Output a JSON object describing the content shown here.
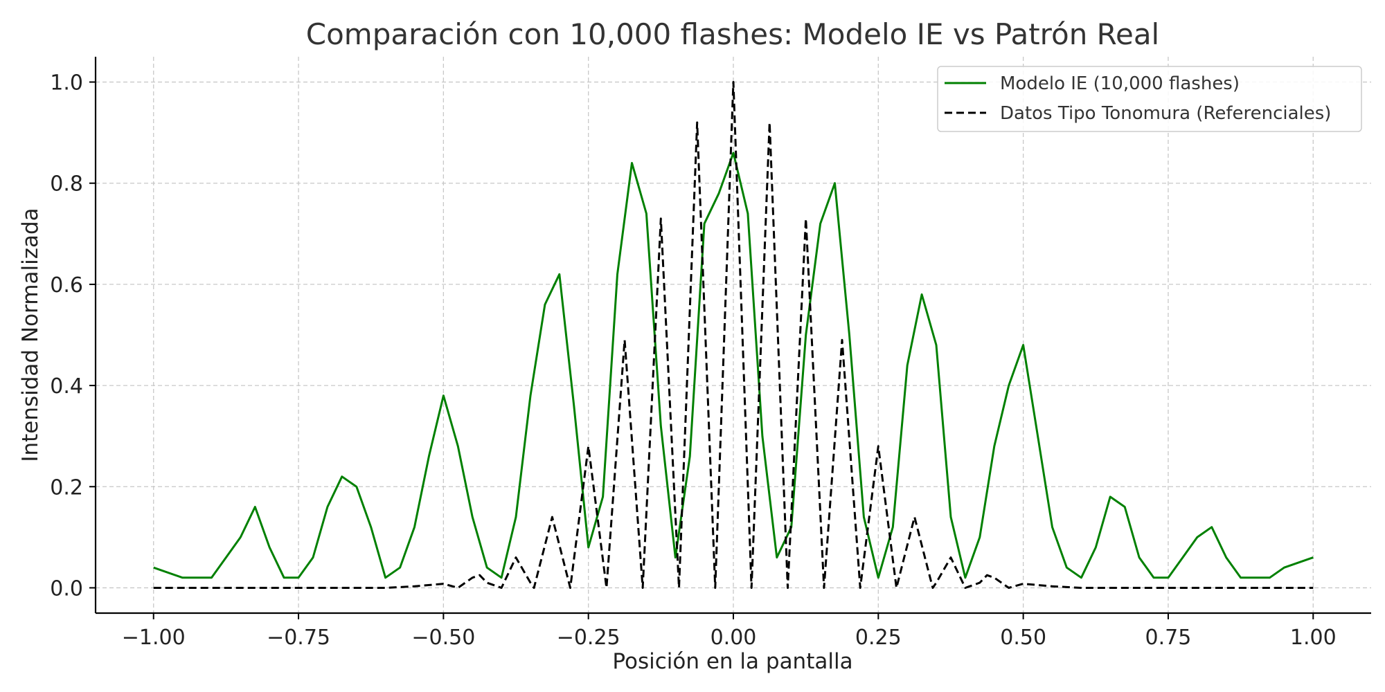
{
  "chart_data": {
    "type": "line",
    "title": "Comparación con 10,000 flashes: Modelo IE vs Patrón Real",
    "xlabel": "Posición en la pantalla",
    "ylabel": "Intensidad Normalizada",
    "xlim": [
      -1.1,
      1.1
    ],
    "ylim": [
      -0.05,
      1.05
    ],
    "xticks": [
      -1.0,
      -0.75,
      -0.5,
      -0.25,
      0.0,
      0.25,
      0.5,
      0.75,
      1.0
    ],
    "xtick_labels": [
      "−1.00",
      "−0.75",
      "−0.50",
      "−0.25",
      "0.00",
      "0.25",
      "0.50",
      "0.75",
      "1.00"
    ],
    "yticks": [
      0.0,
      0.2,
      0.4,
      0.6,
      0.8,
      1.0
    ],
    "ytick_labels": [
      "0.0",
      "0.2",
      "0.4",
      "0.6",
      "0.8",
      "1.0"
    ],
    "grid": true,
    "legend_position": "top-right",
    "series": [
      {
        "name": "Modelo IE (10,000 flashes)",
        "color": "#008000",
        "style": "solid",
        "x": [
          -1.0,
          -0.95,
          -0.9,
          -0.875,
          -0.85,
          -0.825,
          -0.8,
          -0.775,
          -0.75,
          -0.725,
          -0.7,
          -0.675,
          -0.65,
          -0.625,
          -0.6,
          -0.575,
          -0.55,
          -0.525,
          -0.5,
          -0.475,
          -0.45,
          -0.425,
          -0.4,
          -0.375,
          -0.35,
          -0.325,
          -0.3,
          -0.275,
          -0.25,
          -0.225,
          -0.2,
          -0.175,
          -0.15,
          -0.125,
          -0.1,
          -0.075,
          -0.05,
          -0.025,
          0.0,
          0.025,
          0.05,
          0.075,
          0.1,
          0.125,
          0.15,
          0.175,
          0.2,
          0.225,
          0.25,
          0.275,
          0.3,
          0.325,
          0.35,
          0.375,
          0.4,
          0.425,
          0.45,
          0.475,
          0.5,
          0.525,
          0.55,
          0.575,
          0.6,
          0.625,
          0.65,
          0.675,
          0.7,
          0.725,
          0.75,
          0.775,
          0.8,
          0.825,
          0.85,
          0.875,
          0.9,
          0.925,
          0.95,
          1.0
        ],
        "y": [
          0.04,
          0.02,
          0.02,
          0.06,
          0.1,
          0.16,
          0.08,
          0.02,
          0.02,
          0.06,
          0.16,
          0.22,
          0.2,
          0.12,
          0.02,
          0.04,
          0.12,
          0.26,
          0.38,
          0.28,
          0.14,
          0.04,
          0.02,
          0.14,
          0.38,
          0.56,
          0.62,
          0.36,
          0.08,
          0.18,
          0.62,
          0.84,
          0.74,
          0.32,
          0.06,
          0.26,
          0.72,
          0.78,
          0.86,
          0.74,
          0.3,
          0.06,
          0.12,
          0.5,
          0.72,
          0.8,
          0.5,
          0.14,
          0.02,
          0.12,
          0.44,
          0.58,
          0.48,
          0.14,
          0.02,
          0.1,
          0.28,
          0.4,
          0.48,
          0.3,
          0.12,
          0.04,
          0.02,
          0.08,
          0.18,
          0.16,
          0.06,
          0.02,
          0.02,
          0.06,
          0.1,
          0.12,
          0.06,
          0.02,
          0.02,
          0.02,
          0.04,
          0.06
        ]
      },
      {
        "name": "Datos Tipo Tonomura (Referenciales)",
        "color": "#000000",
        "style": "dashed",
        "x": [
          -1.0,
          -0.9,
          -0.8,
          -0.7,
          -0.6,
          -0.55,
          -0.5,
          -0.475,
          -0.45,
          -0.4375,
          -0.425,
          -0.4,
          -0.375,
          -0.35,
          -0.3438,
          -0.3125,
          -0.2813,
          -0.25,
          -0.2188,
          -0.1875,
          -0.1563,
          -0.125,
          -0.0938,
          -0.0625,
          -0.0313,
          0.0,
          0.0313,
          0.0625,
          0.0938,
          0.125,
          0.1563,
          0.1875,
          0.2188,
          0.25,
          0.2813,
          0.3125,
          0.3438,
          0.35,
          0.375,
          0.4,
          0.425,
          0.4375,
          0.45,
          0.475,
          0.5,
          0.55,
          0.6,
          0.7,
          0.8,
          0.9,
          1.0
        ],
        "y": [
          0.0,
          0.0,
          0.0,
          0.0,
          0.0,
          0.003,
          0.008,
          0.0,
          0.02,
          0.025,
          0.01,
          0.0,
          0.06,
          0.01,
          0.0,
          0.14,
          0.0,
          0.28,
          0.0,
          0.49,
          0.0,
          0.73,
          0.0,
          0.92,
          0.0,
          1.0,
          0.0,
          0.92,
          0.0,
          0.73,
          0.0,
          0.49,
          0.0,
          0.28,
          0.0,
          0.14,
          0.0,
          0.01,
          0.06,
          0.0,
          0.01,
          0.025,
          0.02,
          0.0,
          0.008,
          0.003,
          0.0,
          0.0,
          0.0,
          0.0,
          0.0
        ]
      }
    ]
  }
}
